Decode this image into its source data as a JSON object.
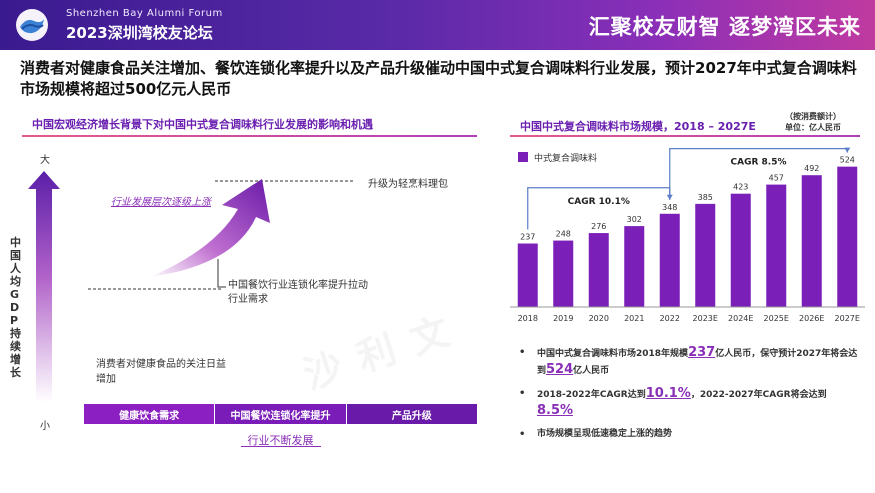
{
  "header": {
    "forum_en": "Shenzhen  Bay Alumni  Forum",
    "forum_cn": "2023深圳湾校友论坛",
    "slogan": "汇聚校友财智  逐梦湾区未来"
  },
  "headline": "消费者对健康食品关注增加、餐饮连锁化率提升以及产品升级催动中国中式复合调味料行业发展，预计2027年中式复合调味料市场规模将超过500亿元人民币",
  "left_panel": {
    "title": "中国宏观经济增长背景下对中国中式复合调味料行业发展的影响和机遇",
    "y_axis_top": "大",
    "y_axis_bottom": "小",
    "y_axis_title": "中国人均GDP持续增长",
    "upgrade_label": "升级为轻烹料理包",
    "industry_level": "行业发展层次逐级上涨",
    "chain_demand": "中国餐饮行业连锁化率提升拉动行业需求",
    "consumer_health": "消费者对健康食品的关注日益增加",
    "bottom_segments": [
      "健康饮食需求",
      "中国餐饮连锁化率提升",
      "产品升级"
    ],
    "bottom_caption": "行业不断发展"
  },
  "right_panel": {
    "title": "中国中式复合调味料市场规模，2018 – 2027E",
    "note_line1": "（按消费额计）",
    "note_line2": "单位：亿人民币"
  },
  "chart_data": {
    "type": "bar",
    "categories": [
      "2018",
      "2019",
      "2020",
      "2021",
      "2022",
      "2023E",
      "2024E",
      "2025E",
      "2026E",
      "2027E"
    ],
    "series": [
      {
        "name": "中式复合调味料",
        "values": [
          237,
          248,
          276,
          302,
          348,
          385,
          423,
          457,
          492,
          524
        ]
      }
    ],
    "annotations": [
      {
        "label": "CAGR 10.1%",
        "from": "2018",
        "to": "2022"
      },
      {
        "label": "CAGR 8.5%",
        "from": "2022",
        "to": "2027E"
      }
    ],
    "ylim": [
      0,
      560
    ],
    "bar_color": "#7a1fb8",
    "legend": "top-left",
    "grid": false
  },
  "bullets": [
    {
      "pre": "中国中式复合调味料市场2018年规模",
      "v1": "237",
      "mid": "亿人民币，保守预计2027年将会达到",
      "v2": "524",
      "post": "亿人民币"
    },
    {
      "pre": "2018-2022年CAGR达到",
      "v1": "10.1%",
      "mid": "，2022-2027年CAGR将会达到",
      "v2": "8.5%",
      "post": ""
    },
    {
      "pre": "市场规模呈现低速稳定上涨的趋势",
      "v1": "",
      "mid": "",
      "v2": "",
      "post": ""
    }
  ],
  "watermark": "沙利文",
  "colors": {
    "accent": "#8a2fb8",
    "header_start": "#3a1a8f",
    "header_end": "#c03aa0",
    "bar": "#7a1fb8"
  }
}
